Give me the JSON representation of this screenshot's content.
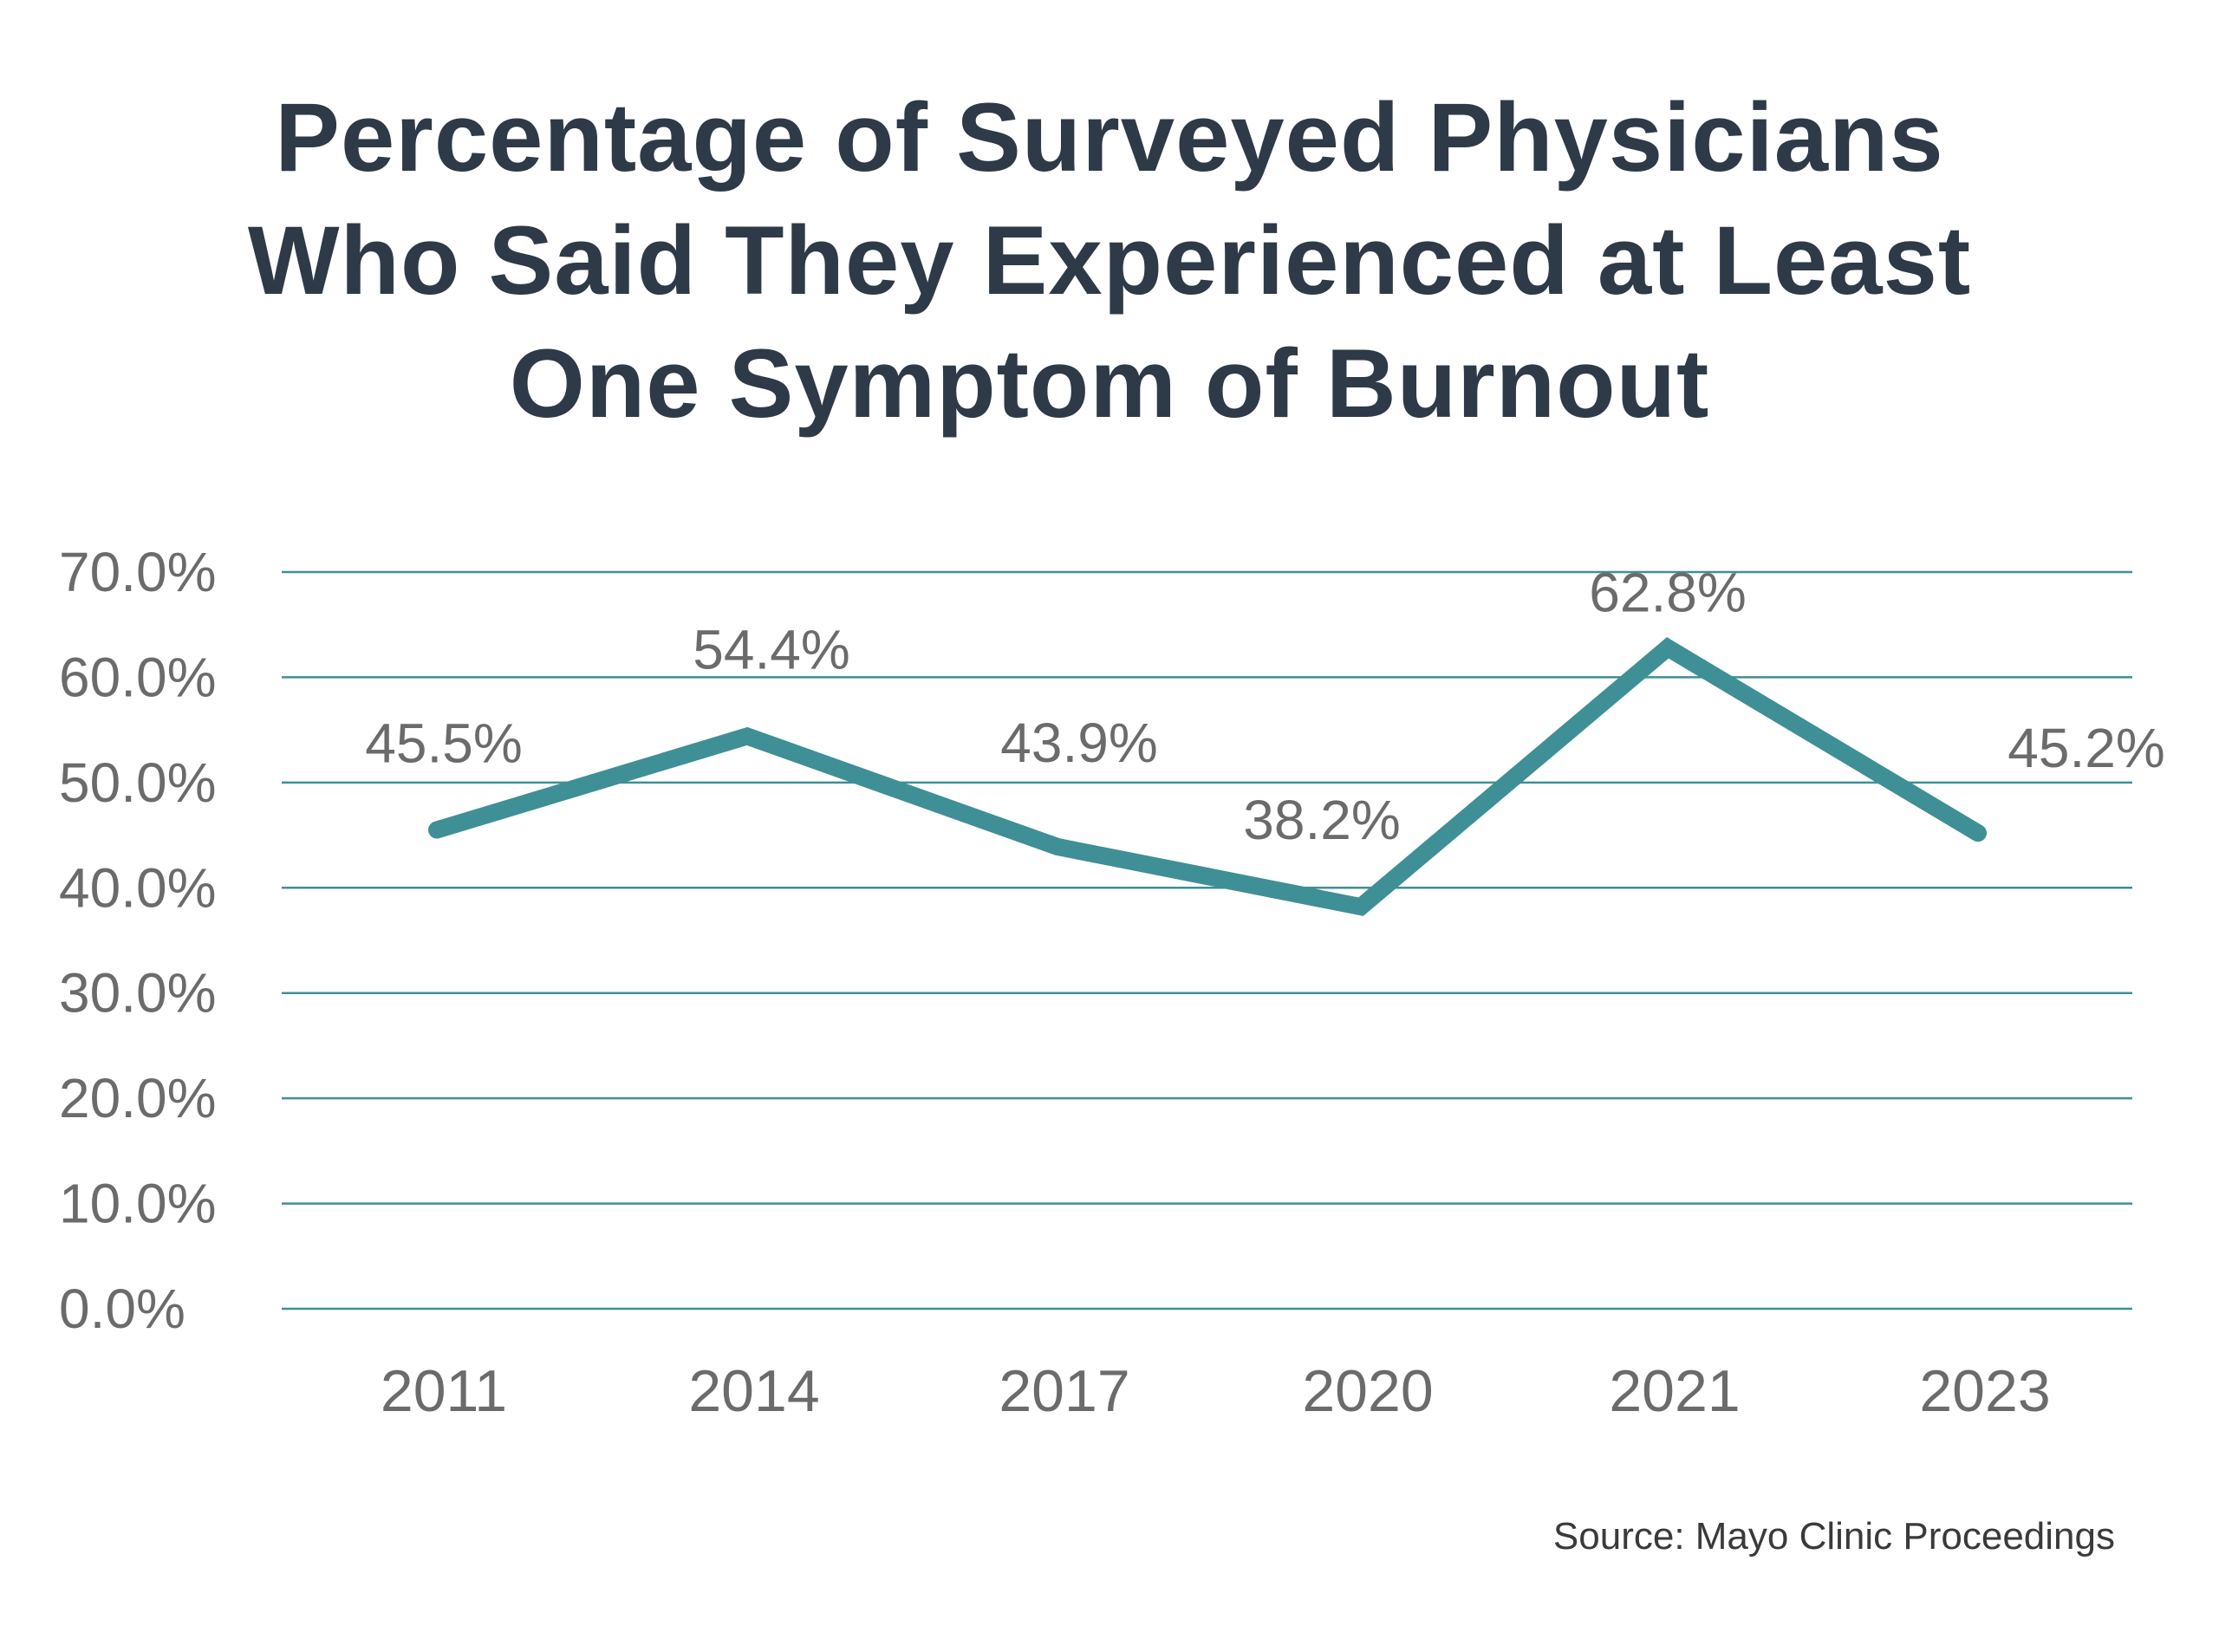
{
  "chart_data": {
    "type": "line",
    "title": [
      "Percentage of Surveyed Physicians",
      "Who Said They Experienced at Least",
      "One Symptom of Burnout"
    ],
    "xlabel": "",
    "ylabel": "",
    "categories": [
      "2011",
      "2014",
      "2017",
      "2020",
      "2021",
      "2023"
    ],
    "series": [
      {
        "values": [
          45.5,
          54.4,
          43.9,
          38.2,
          62.8,
          45.2
        ]
      }
    ],
    "data_labels": [
      "45.5%",
      "54.4%",
      "43.9%",
      "38.2%",
      "62.8%",
      "45.2%"
    ],
    "y_ticks": [
      "0.0%",
      "10.0%",
      "20.0%",
      "30.0%",
      "40.0%",
      "50.0%",
      "60.0%",
      "70.0%"
    ],
    "ylim": [
      0,
      70
    ],
    "grid": true,
    "legend": "none",
    "line_color": "#3f8f96",
    "source": "Source: Mayo Clinic Proceedings"
  }
}
